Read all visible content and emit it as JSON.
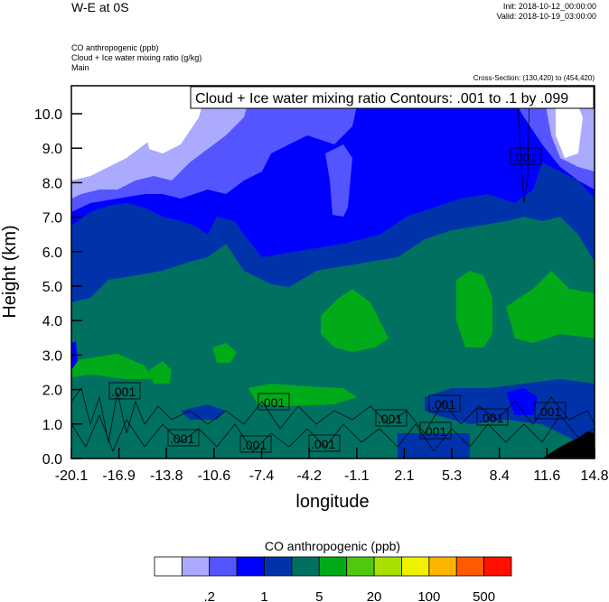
{
  "header": {
    "title": "W-E at 0S",
    "init": "Init: 2018-10-12_00:00:00",
    "valid": "Valid: 2018-10-19_03:00:00",
    "fields": [
      "CO anthropogenic   (ppb)",
      "Cloud + Ice water mixing ratio   (g/kg)",
      "Main"
    ],
    "cross_section": "Cross-Section: (130,420) to (454,420)"
  },
  "chart_data": {
    "type": "heatmap",
    "title": "Cloud + Ice water mixing ratio Contours: .001 to .1 by .099",
    "xlabel": "longitude",
    "ylabel": "Height (km)",
    "xlim": [
      -20.1,
      14.8
    ],
    "ylim": [
      0,
      10.8
    ],
    "x_ticks": [
      "-20.1",
      "-16.9",
      "-13.8",
      "-10.6",
      "-7.4",
      "-4.2",
      "-1.1",
      "2.1",
      "5.3",
      "8.4",
      "11.6",
      "14.8"
    ],
    "y_ticks": [
      "0.0",
      "1.0",
      "2.0",
      "3.0",
      "4.0",
      "5.0",
      "6.0",
      "7.0",
      "8.0",
      "9.0",
      "10.0"
    ],
    "contour_labels": [
      ".001",
      ".001",
      ".001",
      ".001",
      ".001",
      ".001",
      ".001",
      ".001",
      ".001",
      ".001",
      ".001",
      ".001"
    ],
    "colorbar": {
      "title": "CO anthropogenic  (ppb)",
      "colors": [
        "#ffffff",
        "#aaaaff",
        "#5555ff",
        "#0000ff",
        "#0033aa",
        "#007060",
        "#00aa18",
        "#50c810",
        "#a8e000",
        "#f0f000",
        "#ffb400",
        "#ff5a00",
        "#ff1000"
      ],
      "labels": [
        ".2",
        "1",
        "5",
        "20",
        "100",
        "500"
      ]
    }
  }
}
